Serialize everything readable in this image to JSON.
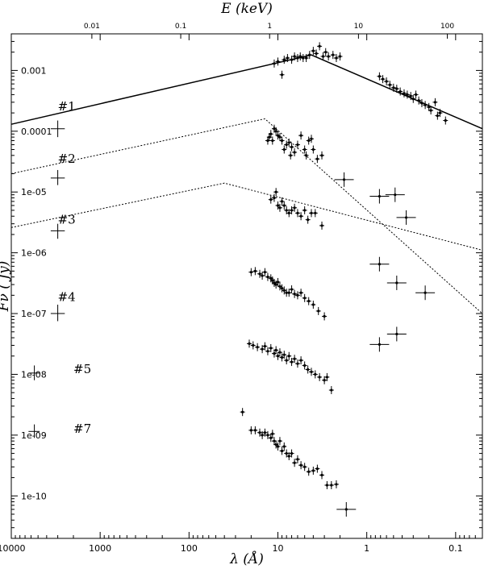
{
  "chart_data": {
    "type": "scatter",
    "title": "",
    "xlabel": "λ (Å)",
    "ylabel": "Fν ( Jy)",
    "top_xlabel": "E (keV)",
    "x_scale": "log",
    "x_direction": "decreasing",
    "y_scale": "log",
    "xlim": [
      10000,
      0.05
    ],
    "ylim": [
      2e-11,
      0.004
    ],
    "x_ticks": [
      10000,
      1000,
      100,
      10,
      1,
      0.1
    ],
    "x_tick_labels": [
      "10000",
      "1000",
      "100",
      "10",
      "1",
      "0.1"
    ],
    "y_ticks": [
      1e-10,
      1e-09,
      1e-08,
      1e-07,
      1e-06,
      1e-05,
      0.0001,
      0.001
    ],
    "y_tick_labels": [
      "1e-10",
      "1e-09",
      "1e-08",
      "1e-07",
      "1e-06",
      "1e-05",
      "0.0001",
      "0.001"
    ],
    "top_ticks": [
      0.01,
      0.1,
      1,
      10,
      100
    ],
    "top_tick_labels": [
      "0.01",
      "0.1",
      "1",
      "10",
      "100"
    ],
    "grid": false,
    "legend": "none",
    "series": [
      {
        "label": "#1",
        "label_pos": [
          3000,
          0.00022
        ],
        "model": {
          "style": "solid",
          "points": [
            [
              10000,
              0.00013
            ],
            [
              4.2,
              0.0018
            ],
            [
              0.05,
              0.00011
            ]
          ]
        },
        "optical": {
          "x": 3000,
          "xerr": [
            3600,
            2500
          ],
          "y": 0.00011,
          "yerr": [
            8e-05,
            0.00015
          ]
        },
        "points": [
          [
            11.0,
            0.0013
          ],
          [
            10.0,
            0.0014
          ],
          [
            9.0,
            0.00085
          ],
          [
            8.5,
            0.0015
          ],
          [
            7.8,
            0.0016
          ],
          [
            7.0,
            0.0015
          ],
          [
            6.5,
            0.0017
          ],
          [
            6.0,
            0.0016
          ],
          [
            5.6,
            0.0017
          ],
          [
            5.2,
            0.0016
          ],
          [
            4.8,
            0.0016
          ],
          [
            4.4,
            0.0018
          ],
          [
            4.0,
            0.0021
          ],
          [
            3.7,
            0.0019
          ],
          [
            3.4,
            0.0025
          ],
          [
            3.1,
            0.0017
          ],
          [
            2.9,
            0.002
          ],
          [
            2.7,
            0.0017
          ],
          [
            2.4,
            0.0018
          ],
          [
            2.2,
            0.0016
          ],
          [
            2.0,
            0.0017
          ],
          [
            0.72,
            0.0008
          ],
          [
            0.66,
            0.00072
          ],
          [
            0.6,
            0.00066
          ],
          [
            0.55,
            0.00058
          ],
          [
            0.5,
            0.00052
          ],
          [
            0.46,
            0.0005
          ],
          [
            0.42,
            0.00045
          ],
          [
            0.38,
            0.00042
          ],
          [
            0.35,
            0.0004
          ],
          [
            0.32,
            0.00038
          ],
          [
            0.3,
            0.00034
          ],
          [
            0.28,
            0.0004
          ],
          [
            0.26,
            0.00032
          ],
          [
            0.24,
            0.00029
          ],
          [
            0.22,
            0.00027
          ],
          [
            0.2,
            0.00025
          ],
          [
            0.19,
            0.00022
          ],
          [
            0.17,
            0.0003
          ],
          [
            0.16,
            0.00018
          ],
          [
            0.15,
            0.0002
          ],
          [
            0.13,
            0.00015
          ]
        ]
      },
      {
        "label": "#2",
        "label_pos": [
          3000,
          3e-05
        ],
        "model": {
          "style": "dotted",
          "points": [
            [
              10000,
              2e-05
            ],
            [
              14,
              0.00016
            ],
            [
              0.05,
              1e-07
            ]
          ]
        },
        "optical": {
          "x": 3000,
          "xerr": [
            3600,
            2500
          ],
          "y": 1.7e-05,
          "yerr": [
            1.3e-05,
            2.3e-05
          ]
        },
        "points": [
          [
            13,
            7e-05
          ],
          [
            12.5,
            8e-05
          ],
          [
            12,
            9e-05
          ],
          [
            11.5,
            7e-05
          ],
          [
            11,
            0.00011
          ],
          [
            10.5,
            0.0001
          ],
          [
            10,
            8.5e-05
          ],
          [
            9.5,
            8e-05
          ],
          [
            9,
            7e-05
          ],
          [
            8.5,
            5e-05
          ],
          [
            8,
            6e-05
          ],
          [
            7.5,
            6.5e-05
          ],
          [
            7.2,
            4e-05
          ],
          [
            7,
            5.5e-05
          ],
          [
            6.5,
            4.5e-05
          ],
          [
            6,
            6e-05
          ],
          [
            5.5,
            8.5e-05
          ],
          [
            5,
            5e-05
          ],
          [
            4.8,
            4e-05
          ],
          [
            4.5,
            7e-05
          ],
          [
            4.2,
            7.5e-05
          ],
          [
            4,
            5e-05
          ],
          [
            3.6,
            3.5e-05
          ],
          [
            3.2,
            4e-05
          ],
          [
            1.8,
            1.6e-05
          ],
          [
            0.72,
            8.5e-06
          ],
          [
            0.48,
            9e-06
          ],
          [
            0.36,
            3.8e-06
          ]
        ]
      },
      {
        "label": "#3",
        "label_pos": [
          3000,
          3e-06
        ],
        "model": {
          "style": "dotted",
          "points": [
            [
              10000,
              2.6e-06
            ],
            [
              40,
              1.4e-05
            ],
            [
              0.05,
              1.1e-06
            ]
          ]
        },
        "optical": {
          "x": 3000,
          "xerr": [
            3600,
            2500
          ],
          "y": 2.3e-06,
          "yerr": [
            1.7e-06,
            3e-06
          ]
        },
        "points": [
          [
            12,
            7.5e-06
          ],
          [
            11,
            8e-06
          ],
          [
            10.5,
            1e-05
          ],
          [
            10,
            6e-06
          ],
          [
            9.5,
            5.5e-06
          ],
          [
            9,
            7e-06
          ],
          [
            8.5,
            6e-06
          ],
          [
            8,
            5e-06
          ],
          [
            7.5,
            4.5e-06
          ],
          [
            7,
            5e-06
          ],
          [
            6.5,
            5.5e-06
          ],
          [
            6,
            4.5e-06
          ],
          [
            5.5,
            4e-06
          ],
          [
            5,
            5e-06
          ],
          [
            4.6,
            3.5e-06
          ],
          [
            4.2,
            4.5e-06
          ],
          [
            3.8,
            4.5e-06
          ],
          [
            3.2,
            2.8e-06
          ],
          [
            0.72,
            6.5e-07
          ],
          [
            0.46,
            3.2e-07
          ],
          [
            0.22,
            2.2e-07
          ]
        ]
      },
      {
        "label": "#4",
        "label_pos": [
          3000,
          1.6e-07
        ],
        "model": null,
        "optical": {
          "x": 3000,
          "xerr": [
            3600,
            2500
          ],
          "y": 1e-07,
          "yerr": [
            7.5e-08,
            1.4e-07
          ]
        },
        "points": [
          [
            20,
            4.8e-07
          ],
          [
            18,
            5e-07
          ],
          [
            16,
            4.5e-07
          ],
          [
            15,
            4.2e-07
          ],
          [
            14,
            4.8e-07
          ],
          [
            13,
            4e-07
          ],
          [
            12,
            3.8e-07
          ],
          [
            11.5,
            3.5e-07
          ],
          [
            11,
            3.2e-07
          ],
          [
            10.5,
            3e-07
          ],
          [
            10,
            3.3e-07
          ],
          [
            9.5,
            2.8e-07
          ],
          [
            9,
            2.6e-07
          ],
          [
            8.5,
            2.4e-07
          ],
          [
            8,
            2.2e-07
          ],
          [
            7.5,
            2.2e-07
          ],
          [
            7,
            2.5e-07
          ],
          [
            6.5,
            2.1e-07
          ],
          [
            6,
            2e-07
          ],
          [
            5.5,
            2.2e-07
          ],
          [
            5,
            1.8e-07
          ],
          [
            4.5,
            1.6e-07
          ],
          [
            4,
            1.4e-07
          ],
          [
            3.5,
            1.1e-07
          ],
          [
            3,
            9e-08
          ],
          [
            0.72,
            3.1e-08
          ],
          [
            0.46,
            4.6e-08
          ]
        ]
      },
      {
        "label": "#5",
        "label_pos": [
          2000,
          1.05e-08
        ],
        "model": null,
        "optical": {
          "x": 5500,
          "xerr": [
            6400,
            4800
          ],
          "y": 1.05e-08,
          "yerr": [
            8e-09,
            1.4e-08
          ]
        },
        "points": [
          [
            21,
            3.2e-08
          ],
          [
            19,
            3e-08
          ],
          [
            17,
            2.8e-08
          ],
          [
            15,
            2.6e-08
          ],
          [
            14,
            2.9e-08
          ],
          [
            13,
            2.4e-08
          ],
          [
            12,
            2.7e-08
          ],
          [
            11,
            2.2e-08
          ],
          [
            10.5,
            2.5e-08
          ],
          [
            10,
            2e-08
          ],
          [
            9.5,
            2.3e-08
          ],
          [
            9,
            1.9e-08
          ],
          [
            8.5,
            2.1e-08
          ],
          [
            8,
            1.7e-08
          ],
          [
            7.5,
            2e-08
          ],
          [
            7,
            1.6e-08
          ],
          [
            6.5,
            1.8e-08
          ],
          [
            6,
            1.5e-08
          ],
          [
            5.5,
            1.7e-08
          ],
          [
            5,
            1.4e-08
          ],
          [
            4.6,
            1.2e-08
          ],
          [
            4.2,
            1.1e-08
          ],
          [
            3.8,
            1e-08
          ],
          [
            3.4,
            9e-09
          ],
          [
            3,
            8e-09
          ],
          [
            2.8,
            9e-09
          ],
          [
            2.5,
            5.5e-09
          ]
        ]
      },
      {
        "label": "#7",
        "label_pos": [
          2000,
          1.1e-09
        ],
        "model": null,
        "optical": {
          "x": 5500,
          "xerr": [
            6400,
            4800
          ],
          "y": 1.15e-09,
          "yerr": [
            9e-10,
            1.5e-09
          ]
        },
        "points": [
          [
            25,
            2.4e-09
          ],
          [
            20,
            1.2e-09
          ],
          [
            18,
            1.2e-09
          ],
          [
            16,
            1.1e-09
          ],
          [
            15,
            1e-09
          ],
          [
            14,
            1.1e-09
          ],
          [
            13,
            1e-09
          ],
          [
            12,
            9e-10
          ],
          [
            11.5,
            1.05e-09
          ],
          [
            11,
            8e-10
          ],
          [
            10.5,
            7e-10
          ],
          [
            10,
            6.5e-10
          ],
          [
            9.5,
            8e-10
          ],
          [
            9,
            5.5e-10
          ],
          [
            8.5,
            6.5e-10
          ],
          [
            8,
            5e-10
          ],
          [
            7.5,
            4.5e-10
          ],
          [
            7,
            5e-10
          ],
          [
            6.5,
            3.5e-10
          ],
          [
            6,
            4e-10
          ],
          [
            5.5,
            3.2e-10
          ],
          [
            5,
            3e-10
          ],
          [
            4.5,
            2.5e-10
          ],
          [
            4,
            2.6e-10
          ],
          [
            3.6,
            2.8e-10
          ],
          [
            3.2,
            2.2e-10
          ],
          [
            2.8,
            1.5e-10
          ],
          [
            2.5,
            1.5e-10
          ],
          [
            2.2,
            1.55e-10
          ],
          [
            1.7,
            6e-11
          ]
        ]
      }
    ]
  }
}
